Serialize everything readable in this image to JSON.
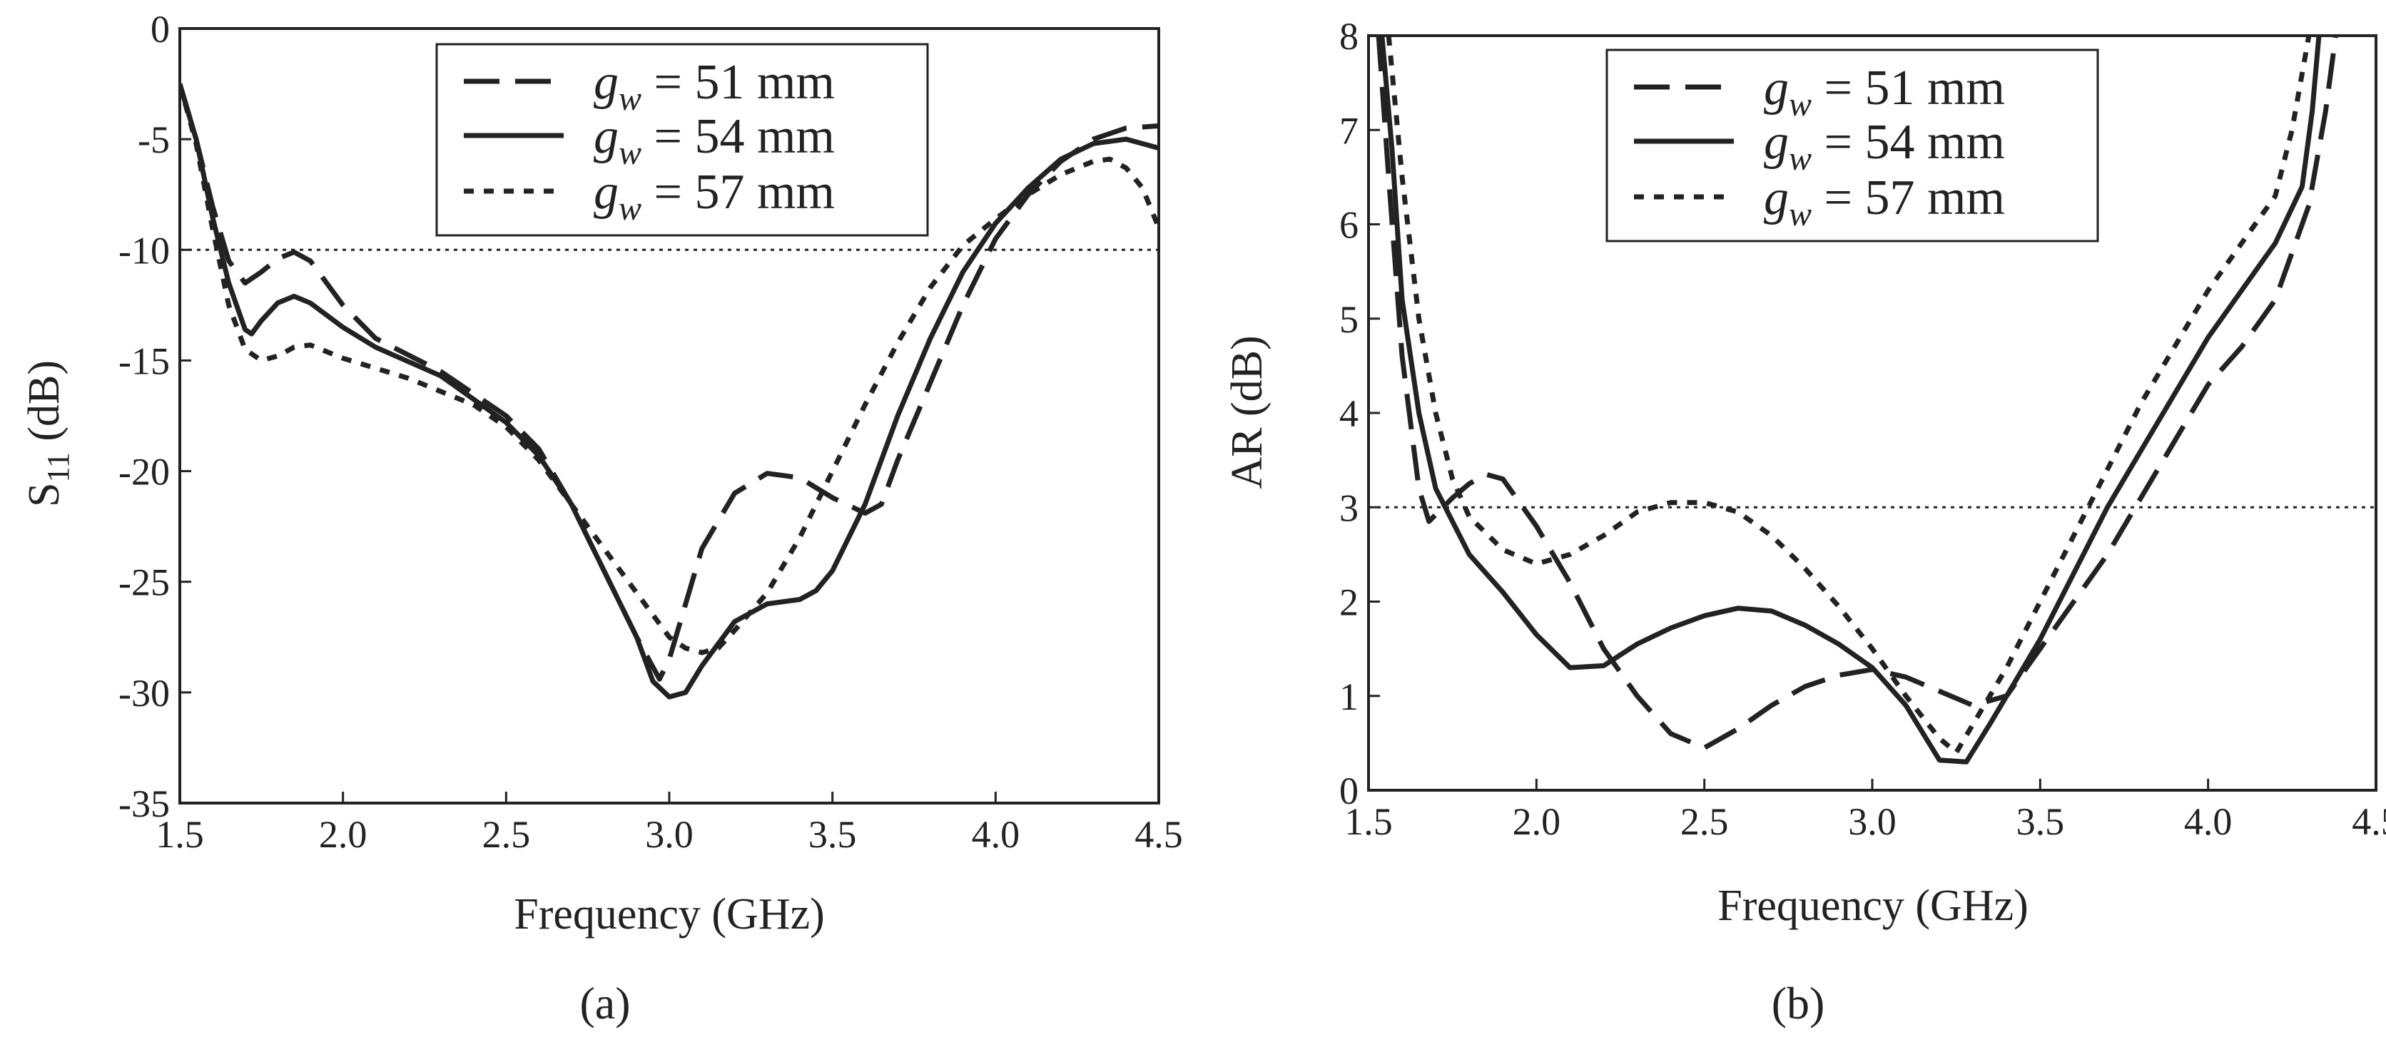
{
  "chart_data": [
    {
      "type": "line",
      "caption": "(a)",
      "xlabel": "Frequency (GHz)",
      "ylabel_main": "S",
      "ylabel_sub": "11",
      "ylabel_tail": " (dB)",
      "xlim": [
        1.5,
        4.5
      ],
      "ylim": [
        -35,
        0
      ],
      "xticks": [
        "1.5",
        "2.0",
        "2.5",
        "3.0",
        "3.5",
        "4.0",
        "4.5"
      ],
      "yticks": [
        "0",
        "-5",
        "-10",
        "-15",
        "-20",
        "-25",
        "-30",
        "-35"
      ],
      "reference_line": {
        "y": -10,
        "style": "dotted"
      },
      "legend_position": "top-center",
      "series": [
        {
          "legend_var": "g",
          "legend_sub": "w",
          "legend_rest": " = 51 mm",
          "dash": "long-dash",
          "points": [
            [
              1.5,
              -2.5
            ],
            [
              1.55,
              -5
            ],
            [
              1.6,
              -8
            ],
            [
              1.65,
              -10.5
            ],
            [
              1.7,
              -11.5
            ],
            [
              1.75,
              -11.0
            ],
            [
              1.8,
              -10.4
            ],
            [
              1.85,
              -10.1
            ],
            [
              1.9,
              -10.5
            ],
            [
              2.0,
              -12.5
            ],
            [
              2.1,
              -14
            ],
            [
              2.3,
              -15.5
            ],
            [
              2.5,
              -17.5
            ],
            [
              2.6,
              -19
            ],
            [
              2.7,
              -21.5
            ],
            [
              2.8,
              -24.5
            ],
            [
              2.9,
              -27.5
            ],
            [
              2.97,
              -29.4
            ],
            [
              3.0,
              -28.5
            ],
            [
              3.05,
              -26
            ],
            [
              3.1,
              -23.5
            ],
            [
              3.2,
              -21
            ],
            [
              3.3,
              -20.1
            ],
            [
              3.4,
              -20.3
            ],
            [
              3.5,
              -21.2
            ],
            [
              3.6,
              -21.9
            ],
            [
              3.65,
              -21.5
            ],
            [
              3.7,
              -19.5
            ],
            [
              3.8,
              -16
            ],
            [
              3.9,
              -12.5
            ],
            [
              4.0,
              -9.5
            ],
            [
              4.1,
              -7.5
            ],
            [
              4.2,
              -6
            ],
            [
              4.3,
              -5
            ],
            [
              4.4,
              -4.5
            ],
            [
              4.5,
              -4.4
            ]
          ]
        },
        {
          "legend_var": "g",
          "legend_sub": "w",
          "legend_rest": " = 54 mm",
          "dash": "solid",
          "points": [
            [
              1.5,
              -2.5
            ],
            [
              1.55,
              -5
            ],
            [
              1.6,
              -8.5
            ],
            [
              1.65,
              -11.5
            ],
            [
              1.7,
              -13.6
            ],
            [
              1.72,
              -13.8
            ],
            [
              1.75,
              -13.2
            ],
            [
              1.8,
              -12.4
            ],
            [
              1.85,
              -12.1
            ],
            [
              1.9,
              -12.4
            ],
            [
              2.0,
              -13.5
            ],
            [
              2.1,
              -14.4
            ],
            [
              2.3,
              -15.7
            ],
            [
              2.5,
              -17.8
            ],
            [
              2.6,
              -19.3
            ],
            [
              2.7,
              -21.5
            ],
            [
              2.8,
              -24.5
            ],
            [
              2.9,
              -27.5
            ],
            [
              2.95,
              -29.5
            ],
            [
              3.0,
              -30.2
            ],
            [
              3.05,
              -30.0
            ],
            [
              3.1,
              -28.8
            ],
            [
              3.2,
              -26.8
            ],
            [
              3.3,
              -26.0
            ],
            [
              3.4,
              -25.8
            ],
            [
              3.45,
              -25.4
            ],
            [
              3.5,
              -24.5
            ],
            [
              3.6,
              -21.5
            ],
            [
              3.7,
              -17.5
            ],
            [
              3.8,
              -14
            ],
            [
              3.9,
              -11
            ],
            [
              4.0,
              -8.8
            ],
            [
              4.1,
              -7.2
            ],
            [
              4.2,
              -5.9
            ],
            [
              4.3,
              -5.2
            ],
            [
              4.4,
              -5.0
            ],
            [
              4.5,
              -5.4
            ]
          ]
        },
        {
          "legend_var": "g",
          "legend_sub": "w",
          "legend_rest": " = 57 mm",
          "dash": "short-dash",
          "points": [
            [
              1.5,
              -2.5
            ],
            [
              1.55,
              -5.2
            ],
            [
              1.6,
              -9
            ],
            [
              1.65,
              -12.5
            ],
            [
              1.7,
              -14.5
            ],
            [
              1.75,
              -15.0
            ],
            [
              1.8,
              -14.8
            ],
            [
              1.85,
              -14.4
            ],
            [
              1.9,
              -14.3
            ],
            [
              2.0,
              -14.9
            ],
            [
              2.2,
              -15.8
            ],
            [
              2.4,
              -17.0
            ],
            [
              2.5,
              -18.0
            ],
            [
              2.6,
              -19.5
            ],
            [
              2.7,
              -21.5
            ],
            [
              2.8,
              -23.5
            ],
            [
              2.9,
              -25.5
            ],
            [
              3.0,
              -27.5
            ],
            [
              3.05,
              -28.0
            ],
            [
              3.1,
              -28.2
            ],
            [
              3.15,
              -28.0
            ],
            [
              3.2,
              -27.2
            ],
            [
              3.3,
              -25.5
            ],
            [
              3.4,
              -23
            ],
            [
              3.5,
              -20
            ],
            [
              3.6,
              -17
            ],
            [
              3.7,
              -14.2
            ],
            [
              3.8,
              -11.7
            ],
            [
              3.9,
              -9.8
            ],
            [
              4.0,
              -8.6
            ],
            [
              4.1,
              -7.5
            ],
            [
              4.2,
              -6.6
            ],
            [
              4.3,
              -6.0
            ],
            [
              4.35,
              -5.9
            ],
            [
              4.4,
              -6.3
            ],
            [
              4.45,
              -7.2
            ],
            [
              4.5,
              -9.0
            ]
          ]
        }
      ]
    },
    {
      "type": "line",
      "caption": "(b)",
      "xlabel": "Frequency (GHz)",
      "ylabel": "AR (dB)",
      "xlim": [
        1.5,
        4.5
      ],
      "ylim": [
        0,
        8
      ],
      "xticks": [
        "1.5",
        "2.0",
        "2.5",
        "3.0",
        "3.5",
        "4.0",
        "4.5"
      ],
      "yticks": [
        "0",
        "1",
        "2",
        "3",
        "4",
        "5",
        "6",
        "7",
        "8"
      ],
      "reference_line": {
        "y": 3,
        "style": "dotted"
      },
      "legend_position": "top-center",
      "series": [
        {
          "legend_var": "g",
          "legend_sub": "w",
          "legend_rest": " = 51 mm",
          "dash": "long-dash",
          "points": [
            [
              1.53,
              8
            ],
            [
              1.56,
              6.5
            ],
            [
              1.6,
              4.6
            ],
            [
              1.65,
              3.2
            ],
            [
              1.68,
              2.85
            ],
            [
              1.75,
              3.1
            ],
            [
              1.8,
              3.25
            ],
            [
              1.85,
              3.35
            ],
            [
              1.9,
              3.3
            ],
            [
              2.0,
              2.8
            ],
            [
              2.1,
              2.2
            ],
            [
              2.2,
              1.5
            ],
            [
              2.3,
              1.0
            ],
            [
              2.4,
              0.6
            ],
            [
              2.5,
              0.45
            ],
            [
              2.6,
              0.65
            ],
            [
              2.7,
              0.9
            ],
            [
              2.8,
              1.1
            ],
            [
              2.9,
              1.22
            ],
            [
              3.0,
              1.28
            ],
            [
              3.1,
              1.2
            ],
            [
              3.2,
              1.05
            ],
            [
              3.3,
              0.9
            ],
            [
              3.4,
              1.0
            ],
            [
              3.5,
              1.5
            ],
            [
              3.6,
              2.0
            ],
            [
              3.7,
              2.5
            ],
            [
              3.8,
              3.1
            ],
            [
              3.9,
              3.7
            ],
            [
              4.0,
              4.3
            ],
            [
              4.1,
              4.7
            ],
            [
              4.2,
              5.2
            ],
            [
              4.3,
              6.2
            ],
            [
              4.35,
              7.2
            ],
            [
              4.38,
              8
            ]
          ]
        },
        {
          "legend_var": "g",
          "legend_sub": "w",
          "legend_rest": " = 54 mm",
          "dash": "solid",
          "points": [
            [
              1.54,
              8
            ],
            [
              1.57,
              6.8
            ],
            [
              1.6,
              5.2
            ],
            [
              1.65,
              4.0
            ],
            [
              1.7,
              3.2
            ],
            [
              1.8,
              2.5
            ],
            [
              1.9,
              2.1
            ],
            [
              2.0,
              1.65
            ],
            [
              2.1,
              1.3
            ],
            [
              2.2,
              1.32
            ],
            [
              2.3,
              1.55
            ],
            [
              2.4,
              1.72
            ],
            [
              2.5,
              1.85
            ],
            [
              2.6,
              1.93
            ],
            [
              2.7,
              1.9
            ],
            [
              2.8,
              1.75
            ],
            [
              2.9,
              1.55
            ],
            [
              3.0,
              1.3
            ],
            [
              3.1,
              0.9
            ],
            [
              3.2,
              0.32
            ],
            [
              3.28,
              0.3
            ],
            [
              3.35,
              0.7
            ],
            [
              3.4,
              1.0
            ],
            [
              3.5,
              1.6
            ],
            [
              3.6,
              2.3
            ],
            [
              3.7,
              3.0
            ],
            [
              3.8,
              3.6
            ],
            [
              3.9,
              4.2
            ],
            [
              4.0,
              4.8
            ],
            [
              4.1,
              5.3
            ],
            [
              4.2,
              5.8
            ],
            [
              4.28,
              6.4
            ],
            [
              4.31,
              7.2
            ],
            [
              4.33,
              8
            ]
          ]
        },
        {
          "legend_var": "g",
          "legend_sub": "w",
          "legend_rest": " = 57 mm",
          "dash": "short-dash",
          "points": [
            [
              1.56,
              8
            ],
            [
              1.6,
              6.5
            ],
            [
              1.65,
              5.0
            ],
            [
              1.7,
              4.0
            ],
            [
              1.75,
              3.3
            ],
            [
              1.8,
              2.9
            ],
            [
              1.9,
              2.55
            ],
            [
              2.0,
              2.4
            ],
            [
              2.1,
              2.5
            ],
            [
              2.2,
              2.7
            ],
            [
              2.3,
              2.95
            ],
            [
              2.4,
              3.05
            ],
            [
              2.5,
              3.05
            ],
            [
              2.6,
              2.95
            ],
            [
              2.7,
              2.7
            ],
            [
              2.8,
              2.35
            ],
            [
              2.9,
              1.95
            ],
            [
              3.0,
              1.5
            ],
            [
              3.1,
              1.0
            ],
            [
              3.2,
              0.55
            ],
            [
              3.25,
              0.4
            ],
            [
              3.3,
              0.7
            ],
            [
              3.4,
              1.3
            ],
            [
              3.5,
              2.0
            ],
            [
              3.6,
              2.7
            ],
            [
              3.7,
              3.4
            ],
            [
              3.8,
              4.1
            ],
            [
              3.9,
              4.7
            ],
            [
              4.0,
              5.3
            ],
            [
              4.1,
              5.8
            ],
            [
              4.2,
              6.3
            ],
            [
              4.25,
              7.0
            ],
            [
              4.28,
              7.6
            ],
            [
              4.3,
              8
            ]
          ]
        }
      ]
    }
  ]
}
